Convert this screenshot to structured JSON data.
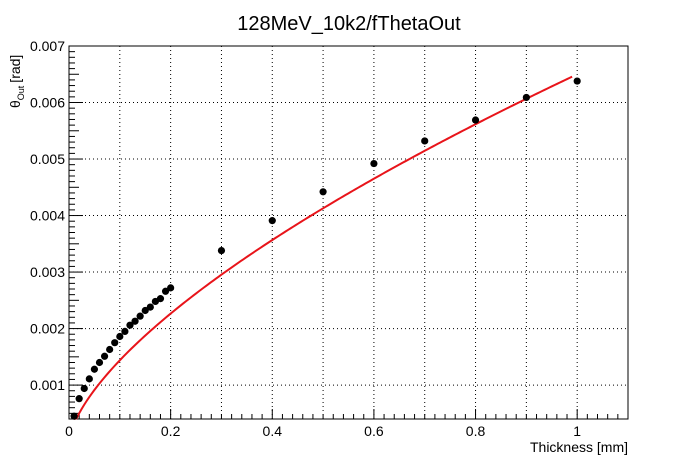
{
  "chart_data": {
    "type": "scatter",
    "title": "128MeV_10k2/fThetaOut",
    "xlabel": "Thickness [mm]",
    "ylabel_main": "θ",
    "ylabel_sub": "Out",
    "ylabel_unit": "[rad]",
    "xlim": [
      0,
      1.1
    ],
    "ylim": [
      0.0004,
      0.007
    ],
    "x_ticks": [
      {
        "value": 0,
        "label": "0"
      },
      {
        "value": 0.2,
        "label": "0.2"
      },
      {
        "value": 0.4,
        "label": "0.4"
      },
      {
        "value": 0.6,
        "label": "0.6"
      },
      {
        "value": 0.8,
        "label": "0.8"
      },
      {
        "value": 1.0,
        "label": "1"
      }
    ],
    "y_ticks": [
      {
        "value": 0.001,
        "label": "0.001"
      },
      {
        "value": 0.002,
        "label": "0.002"
      },
      {
        "value": 0.003,
        "label": "0.003"
      },
      {
        "value": 0.004,
        "label": "0.004"
      },
      {
        "value": 0.005,
        "label": "0.005"
      },
      {
        "value": 0.006,
        "label": "0.006"
      },
      {
        "value": 0.007,
        "label": "0.007"
      }
    ],
    "grid": true,
    "series": [
      {
        "kind": "points",
        "color": "#000000",
        "x": [
          0.01,
          0.02,
          0.03,
          0.04,
          0.05,
          0.06,
          0.07,
          0.08,
          0.09,
          0.1,
          0.11,
          0.12,
          0.13,
          0.14,
          0.15,
          0.16,
          0.17,
          0.18,
          0.19,
          0.2,
          0.3,
          0.4,
          0.5,
          0.6,
          0.7,
          0.8,
          0.9,
          1.0
        ],
        "y": [
          0.00045,
          0.00076,
          0.00094,
          0.00111,
          0.00128,
          0.0014,
          0.00151,
          0.00163,
          0.00175,
          0.00186,
          0.00195,
          0.00206,
          0.00213,
          0.00222,
          0.00232,
          0.00238,
          0.00248,
          0.00253,
          0.00266,
          0.00272,
          0.00338,
          0.00391,
          0.00442,
          0.00492,
          0.00532,
          0.00569,
          0.00609,
          0.00638
        ]
      },
      {
        "kind": "fit",
        "color": "#e8141a",
        "model": "power",
        "a": 0.0065,
        "b": 0.655,
        "x_range": [
          0.01,
          0.99
        ]
      }
    ]
  }
}
